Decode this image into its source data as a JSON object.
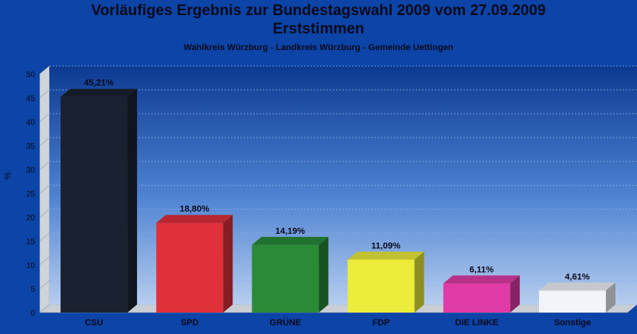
{
  "header": {
    "title_line1": "Vorläufiges Ergebnis zur Bundestagswahl 2009 vom 27.09.2009",
    "title_line2": "Erststimmen",
    "subtitle": "Wahlkreis Würzburg - Landkreis Würzburg - Gemeinde Uettingen"
  },
  "chart_data": {
    "type": "bar",
    "title": "Vorläufiges Ergebnis zur Bundestagswahl 2009 vom 27.09.2009 Erststimmen",
    "subtitle": "Wahlkreis Würzburg - Landkreis Würzburg - Gemeinde Uettingen",
    "xlabel": "",
    "ylabel": "%",
    "ylim": [
      0,
      50
    ],
    "yticks": [
      0,
      5,
      10,
      15,
      20,
      25,
      30,
      35,
      40,
      45,
      50
    ],
    "grid": true,
    "categories": [
      "CSU",
      "SPD",
      "GRÜNE",
      "FDP",
      "DIE LINKE",
      "Sonstige"
    ],
    "values": [
      45.21,
      18.8,
      14.19,
      11.09,
      6.11,
      4.61
    ],
    "value_labels": [
      "45,21%",
      "18,80%",
      "14,19%",
      "11,09%",
      "6,11%",
      "4,61%"
    ],
    "colors": [
      "#1a2130",
      "#e0303a",
      "#2a8a38",
      "#ecec3a",
      "#e03aa6",
      "#f2f4fa"
    ],
    "background_color": "#0c44a8"
  }
}
